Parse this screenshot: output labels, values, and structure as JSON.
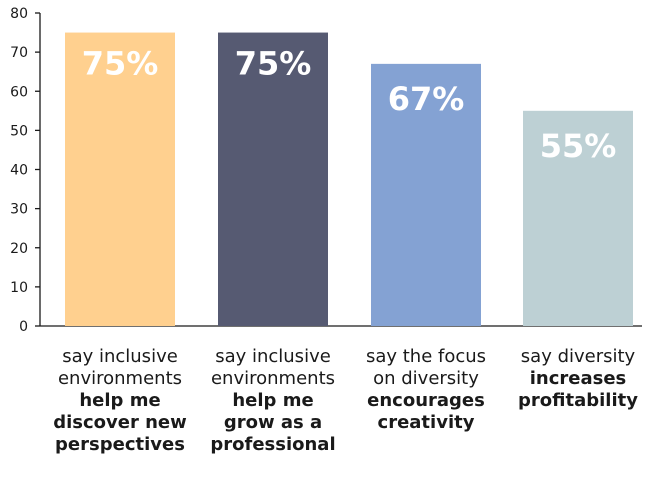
{
  "chart_data": {
    "type": "bar",
    "categories": [
      "say inclusive environments help me discover new perspectives",
      "say inclusive environments help me grow as a professional",
      "say the focus on diversity encourages creativity",
      "say diversity increases profitability"
    ],
    "category_lines": [
      {
        "regular": [
          "say inclusive",
          "environments"
        ],
        "bold": [
          "help me",
          "discover new",
          "perspectives"
        ]
      },
      {
        "regular": [
          "say inclusive",
          "environments"
        ],
        "bold": [
          "help me",
          "grow as a",
          "professional"
        ]
      },
      {
        "regular": [
          "say the focus",
          "on diversity"
        ],
        "bold": [
          "encourages",
          "creativity"
        ]
      },
      {
        "regular": [
          "say diversity"
        ],
        "bold": [
          "increases",
          "profitability"
        ]
      }
    ],
    "values": [
      75,
      75,
      67,
      55
    ],
    "data_labels": [
      "75%",
      "75%",
      "67%",
      "55%"
    ],
    "bar_colors": [
      "#FFD08F",
      "#565A72",
      "#84A2D3",
      "#BDD0D4"
    ],
    "yticks": [
      "0",
      "10",
      "20",
      "30",
      "40",
      "50",
      "60",
      "70",
      "80"
    ],
    "ylim": [
      0,
      80
    ],
    "grid": false,
    "title": "",
    "xlabel": "",
    "ylabel": ""
  }
}
